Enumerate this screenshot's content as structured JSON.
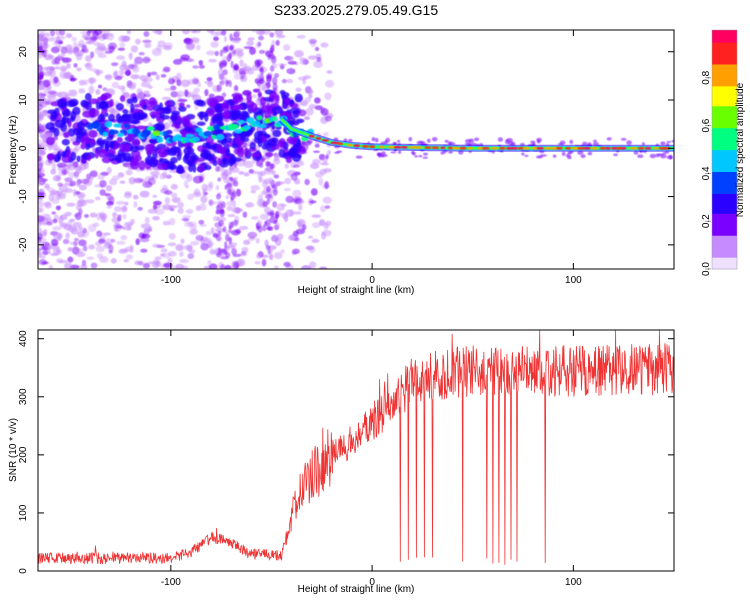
{
  "title": "S233.2025.279.05.49.G15",
  "chart_data": [
    {
      "type": "heatmap",
      "xlabel": "Height of straight line (km)",
      "ylabel": "Frequency (Hz)",
      "xlim": [
        -166,
        150
      ],
      "ylim": [
        -25,
        24.5
      ],
      "xticks": [
        -100,
        0,
        100
      ],
      "yticks": [
        -20,
        -10,
        0,
        10,
        20
      ],
      "grid": false,
      "colorbar": {
        "label": "Normalized spectral amplitude",
        "range": [
          0,
          1
        ],
        "ticks": [
          "0.0",
          "0.2",
          "0.4",
          "0.6",
          "0.8"
        ],
        "colors": [
          "#f0e0ff",
          "#c68cff",
          "#7a00ff",
          "#2a00ff",
          "#0040ff",
          "#00c8ff",
          "#00ff80",
          "#6aff00",
          "#ffff00",
          "#ffa000",
          "#ff2020",
          "#ff0060"
        ]
      },
      "ridge": [
        {
          "x": -130,
          "y": 4
        },
        {
          "x": -110,
          "y": 3
        },
        {
          "x": -95,
          "y": 2
        },
        {
          "x": -80,
          "y": 3
        },
        {
          "x": -60,
          "y": 5
        },
        {
          "x": -45,
          "y": 6
        },
        {
          "x": -40,
          "y": 4
        },
        {
          "x": -30,
          "y": 2.5
        },
        {
          "x": -20,
          "y": 1.2
        },
        {
          "x": -10,
          "y": 0.6
        },
        {
          "x": 0,
          "y": 0.3
        },
        {
          "x": 50,
          "y": 0
        },
        {
          "x": 150,
          "y": 0
        }
      ]
    },
    {
      "type": "line",
      "xlabel": "Height of straight line (km)",
      "ylabel": "SNR (10 * v/v)",
      "xlim": [
        -166,
        150
      ],
      "ylim": [
        0,
        415
      ],
      "xticks": [
        -100,
        0,
        100
      ],
      "yticks": [
        0,
        100,
        200,
        300,
        400
      ],
      "line_color": "#ef3333",
      "envelope": [
        {
          "x": -166,
          "y": 22
        },
        {
          "x": -100,
          "y": 22
        },
        {
          "x": -90,
          "y": 32
        },
        {
          "x": -80,
          "y": 58
        },
        {
          "x": -70,
          "y": 48
        },
        {
          "x": -60,
          "y": 28
        },
        {
          "x": -45,
          "y": 28
        },
        {
          "x": -38,
          "y": 120
        },
        {
          "x": -30,
          "y": 165
        },
        {
          "x": -20,
          "y": 200
        },
        {
          "x": -10,
          "y": 225
        },
        {
          "x": 0,
          "y": 255
        },
        {
          "x": 10,
          "y": 290
        },
        {
          "x": 20,
          "y": 320
        },
        {
          "x": 30,
          "y": 335
        },
        {
          "x": 50,
          "y": 345
        },
        {
          "x": 100,
          "y": 345
        },
        {
          "x": 150,
          "y": 348
        }
      ],
      "dropouts": [
        14,
        18,
        22,
        26,
        30,
        45,
        57,
        60,
        63,
        66,
        69,
        72,
        86
      ]
    }
  ]
}
